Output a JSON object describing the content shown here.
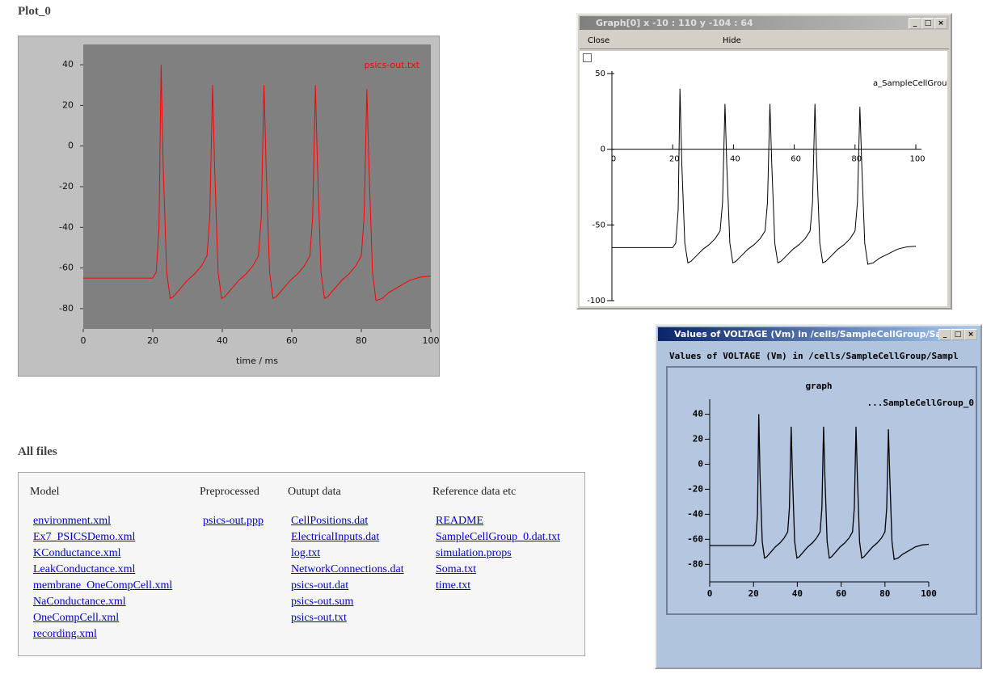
{
  "plot_heading": "Plot_0",
  "files_heading": "All files",
  "files": {
    "columns": [
      {
        "header": "Model",
        "items": [
          "environment.xml",
          "Ex7_PSICSDemo.xml",
          "KConductance.xml",
          "LeakConductance.xml",
          "membrane_OneCompCell.xml",
          "NaConductance.xml",
          "OneCompCell.xml",
          "recording.xml"
        ]
      },
      {
        "header": "Preprocessed",
        "items": [
          "psics-out.ppp"
        ]
      },
      {
        "header": "Outupt data",
        "items": [
          "CellPositions.dat",
          "ElectricalInputs.dat",
          "log.txt",
          "NetworkConnections.dat",
          "psics-out.dat",
          "psics-out.sum",
          "psics-out.txt"
        ]
      },
      {
        "header": "Reference data etc",
        "items": [
          "README",
          "SampleCellGroup_0.dat.txt",
          "simulation.props",
          "Soma.txt",
          "time.txt"
        ]
      }
    ]
  },
  "graph_window": {
    "title": "Graph[0]  x -10 : 110  y -104 : 64",
    "buttons": [
      "Close",
      "Hide"
    ]
  },
  "values_window": {
    "title": "Values of VOLTAGE (Vm) in /cells/SampleCellGroup/Sam...",
    "header": "Values of VOLTAGE (Vm) in /cells/SampleCellGroup/Sampl"
  },
  "chart_data": [
    {
      "type": "line",
      "x_label": "time / ms",
      "x": [
        0,
        20,
        21,
        21.8,
        22.4,
        23,
        24,
        25,
        26,
        28,
        30,
        32,
        34,
        35.6,
        36.4,
        37.2,
        37.8,
        38.8,
        39.8,
        40.8,
        42.8,
        44.8,
        46.8,
        48.8,
        50.4,
        51.2,
        52,
        52.6,
        53.6,
        54.6,
        55.6,
        57.6,
        59.6,
        61.6,
        63.6,
        65.2,
        66,
        66.8,
        67.4,
        68.4,
        69.4,
        70.4,
        72.4,
        74.4,
        76.4,
        78.4,
        80,
        80.8,
        81.6,
        82.2,
        83.2,
        84.2,
        86,
        88,
        91,
        94,
        97,
        100
      ],
      "series": [
        {
          "name": "psics-out.txt",
          "color": "#ff0000",
          "values": [
            -65,
            -65,
            -62,
            -40,
            40,
            -10,
            -62,
            -75,
            -74,
            -70,
            -66,
            -63,
            -59,
            -54,
            -35,
            30,
            -10,
            -62,
            -75,
            -74,
            -70,
            -66,
            -63,
            -59,
            -54,
            -35,
            30,
            -10,
            -62,
            -75,
            -74,
            -70,
            -66,
            -63,
            -59,
            -54,
            -35,
            30,
            -10,
            -62,
            -75,
            -74,
            -70,
            -66,
            -63,
            -59,
            -54,
            -35,
            28,
            -10,
            -62,
            -76,
            -75,
            -72,
            -69,
            -66,
            -64.5,
            -64
          ]
        }
      ],
      "xlim": [
        0,
        100
      ],
      "ylim": [
        -90,
        50
      ],
      "xticks": [
        0,
        20,
        40,
        60,
        80,
        100
      ],
      "yticks": [
        40,
        20,
        0,
        -20,
        -40,
        -60,
        -80
      ]
    },
    {
      "type": "line",
      "x": [
        0,
        20,
        21,
        21.8,
        22.4,
        23,
        24,
        25,
        26,
        28,
        30,
        32,
        34,
        35.6,
        36.4,
        37.2,
        37.8,
        38.8,
        39.8,
        40.8,
        42.8,
        44.8,
        46.8,
        48.8,
        50.4,
        51.2,
        52,
        52.6,
        53.6,
        54.6,
        55.6,
        57.6,
        59.6,
        61.6,
        63.6,
        65.2,
        66,
        66.8,
        67.4,
        68.4,
        69.4,
        70.4,
        72.4,
        74.4,
        76.4,
        78.4,
        80,
        80.8,
        81.6,
        82.2,
        83.2,
        84.2,
        86,
        88,
        91,
        94,
        97,
        100
      ],
      "series": [
        {
          "name": "a_SampleCellGrou",
          "color": "#000000",
          "values": [
            -65,
            -65,
            -62,
            -40,
            40,
            -10,
            -62,
            -75,
            -74,
            -70,
            -66,
            -63,
            -59,
            -54,
            -35,
            30,
            -10,
            -62,
            -75,
            -74,
            -70,
            -66,
            -63,
            -59,
            -54,
            -35,
            30,
            -10,
            -62,
            -75,
            -74,
            -70,
            -66,
            -63,
            -59,
            -54,
            -35,
            30,
            -10,
            -62,
            -75,
            -74,
            -70,
            -66,
            -63,
            -59,
            -54,
            -35,
            28,
            -10,
            -62,
            -76,
            -75,
            -72,
            -69,
            -66,
            -64.5,
            -64
          ]
        }
      ],
      "xlim": [
        0,
        100
      ],
      "ylim": [
        -100,
        50
      ],
      "xticks": [
        0,
        20,
        40,
        60,
        80,
        100
      ],
      "yticks": [
        50,
        0,
        -50,
        -100
      ]
    },
    {
      "type": "line",
      "title": "graph",
      "x": [
        0,
        20,
        21,
        21.8,
        22.4,
        23,
        24,
        25,
        26,
        28,
        30,
        32,
        34,
        35.6,
        36.4,
        37.2,
        37.8,
        38.8,
        39.8,
        40.8,
        42.8,
        44.8,
        46.8,
        48.8,
        50.4,
        51.2,
        52,
        52.6,
        53.6,
        54.6,
        55.6,
        57.6,
        59.6,
        61.6,
        63.6,
        65.2,
        66,
        66.8,
        67.4,
        68.4,
        69.4,
        70.4,
        72.4,
        74.4,
        76.4,
        78.4,
        80,
        80.8,
        81.6,
        82.2,
        83.2,
        84.2,
        86,
        88,
        91,
        94,
        97,
        100
      ],
      "series": [
        {
          "name": "...SampleCellGroup_0",
          "color": "#000000",
          "values": [
            -65,
            -65,
            -62,
            -40,
            40,
            -10,
            -62,
            -75,
            -74,
            -70,
            -66,
            -63,
            -59,
            -54,
            -35,
            30,
            -10,
            -62,
            -75,
            -74,
            -70,
            -66,
            -63,
            -59,
            -54,
            -35,
            30,
            -10,
            -62,
            -75,
            -74,
            -70,
            -66,
            -63,
            -59,
            -54,
            -35,
            30,
            -10,
            -62,
            -75,
            -74,
            -70,
            -66,
            -63,
            -59,
            -54,
            -35,
            28,
            -10,
            -62,
            -76,
            -75,
            -72,
            -69,
            -66,
            -64.5,
            -64
          ]
        }
      ],
      "xlim": [
        0,
        100
      ],
      "ylim": [
        -94,
        50
      ],
      "xticks": [
        0,
        20,
        40,
        60,
        80,
        100
      ],
      "yticks": [
        40,
        20,
        0,
        -20,
        -40,
        -60,
        -80
      ]
    }
  ]
}
